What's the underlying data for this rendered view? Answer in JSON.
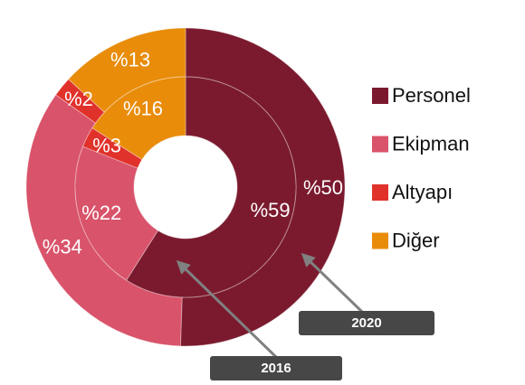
{
  "chart_data": {
    "type": "donut",
    "categories": [
      "Personel",
      "Ekipman",
      "Altyapı",
      "Diğer"
    ],
    "colors": [
      "#7b1a2e",
      "#d9536a",
      "#e0312a",
      "#e88c0a"
    ],
    "series": [
      {
        "name": "2020",
        "values": [
          50,
          34,
          2,
          13
        ],
        "value_labels": [
          "%50",
          "%34",
          "%2",
          "%13"
        ]
      },
      {
        "name": "2016",
        "values": [
          59,
          22,
          3,
          16
        ],
        "value_labels": [
          "%59",
          "%22",
          "%3",
          "%16"
        ]
      }
    ],
    "legend": "right"
  }
}
